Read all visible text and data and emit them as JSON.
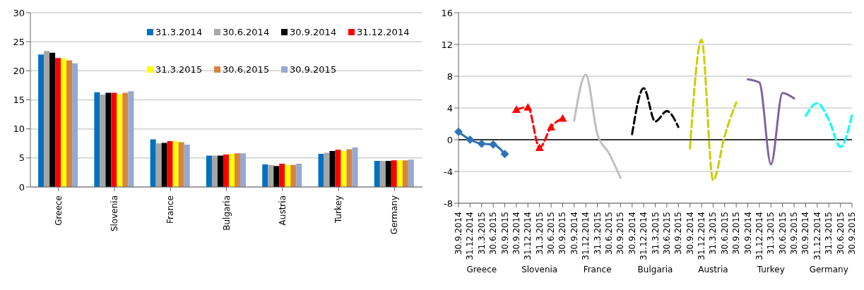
{
  "chart_data": [
    {
      "type": "bar",
      "categories": [
        "Greece",
        "Slovenia",
        "France",
        "Bulgaria",
        "Austria",
        "Turkey",
        "Germany"
      ],
      "series": [
        {
          "name": "31.3.2014",
          "color": "#0070c0",
          "values": [
            22.8,
            16.3,
            8.2,
            5.4,
            3.9,
            5.7,
            4.5
          ]
        },
        {
          "name": "30.6.2014",
          "color": "#a6a6a6",
          "values": [
            23.4,
            15.9,
            7.5,
            5.4,
            3.8,
            5.9,
            4.5
          ]
        },
        {
          "name": "30.9.2014",
          "color": "#000000",
          "values": [
            23.1,
            16.2,
            7.6,
            5.4,
            3.6,
            6.2,
            4.5
          ]
        },
        {
          "name": "31.12.2014",
          "color": "#ff0000",
          "values": [
            22.2,
            16.2,
            7.9,
            5.6,
            4.0,
            6.4,
            4.6
          ]
        },
        {
          "name": "31.3.2015",
          "color": "#ffff00",
          "values": [
            22.1,
            16.0,
            7.9,
            5.7,
            3.8,
            6.2,
            4.6
          ]
        },
        {
          "name": "30.6.2015",
          "color": "#d9843c",
          "values": [
            21.8,
            16.2,
            7.7,
            5.8,
            3.8,
            6.5,
            4.6
          ]
        },
        {
          "name": "30.9.2015",
          "color": "#95a9d1",
          "values": [
            21.3,
            16.5,
            7.3,
            5.8,
            4.0,
            6.8,
            4.7
          ]
        }
      ],
      "ylim": [
        0,
        30
      ],
      "yticks": [
        0,
        5,
        10,
        15,
        20,
        25,
        30
      ],
      "grid": "y",
      "legend": "top right"
    },
    {
      "type": "line",
      "categories": [
        "30.9.2014",
        "31.12.2014",
        "31.3.2015",
        "30.6.2015",
        "30.9.2015",
        "30.9.2014",
        "31.12.2014",
        "31.3.2015",
        "30.6.2015",
        "30.9.2015",
        "30.9.2014",
        "31.12.2014",
        "31.3.2015",
        "30.6.2015",
        "30.9.2015",
        "30.9.2014",
        "31.12.2014",
        "31.3.2015",
        "30.6.2015",
        "30.9.2015",
        "30.9.2014",
        "31.12.2014",
        "31.3.2015",
        "30.6.2015",
        "30.9.2015",
        "30.9.2014",
        "31.12.2014",
        "31.3.2015",
        "30.6.2015",
        "30.9.2015",
        "30.9.2014",
        "31.12.2014",
        "31.3.2015",
        "30.6.2015",
        "30.9.2015"
      ],
      "series": [
        {
          "color": "#2e75b6",
          "marker": "diamond",
          "line_style": "solid",
          "values": [
            1.0,
            0.0,
            -0.5,
            -0.6,
            -1.8,
            null,
            null,
            null,
            null,
            null,
            null,
            null,
            null,
            null,
            null,
            null,
            null,
            null,
            null,
            null,
            null,
            null,
            null,
            null,
            null,
            null,
            null,
            null,
            null,
            null,
            null,
            null,
            null,
            null,
            null
          ]
        },
        {
          "color": "#ff0000",
          "marker": "triangle",
          "line_style": "dashed",
          "values": [
            null,
            null,
            null,
            null,
            null,
            3.8,
            4.1,
            -1.0,
            1.6,
            2.7,
            null,
            null,
            null,
            null,
            null,
            null,
            null,
            null,
            null,
            null,
            null,
            null,
            null,
            null,
            null,
            null,
            null,
            null,
            null,
            null,
            null,
            null,
            null,
            null,
            null
          ]
        },
        {
          "color": "#bfbfbf",
          "marker": "none",
          "line_style": "solid",
          "values": [
            null,
            null,
            null,
            null,
            null,
            null,
            null,
            null,
            null,
            null,
            2.4,
            8.2,
            0.7,
            -1.7,
            -4.8,
            null,
            null,
            null,
            null,
            null,
            null,
            null,
            null,
            null,
            null,
            null,
            null,
            null,
            null,
            null,
            null,
            null,
            null,
            null,
            null
          ]
        },
        {
          "color": "#000000",
          "marker": "none",
          "line_style": "dashed",
          "values": [
            null,
            null,
            null,
            null,
            null,
            null,
            null,
            null,
            null,
            null,
            null,
            null,
            null,
            null,
            null,
            0.7,
            6.5,
            2.3,
            3.6,
            1.6,
            null,
            null,
            null,
            null,
            null,
            null,
            null,
            null,
            null,
            null,
            null,
            null,
            null,
            null,
            null
          ]
        },
        {
          "color": "#cccc00",
          "marker": "none",
          "line_style": "dashed",
          "values": [
            null,
            null,
            null,
            null,
            null,
            null,
            null,
            null,
            null,
            null,
            null,
            null,
            null,
            null,
            null,
            null,
            null,
            null,
            null,
            null,
            -1.1,
            12.6,
            -5.1,
            0.5,
            4.7,
            null,
            null,
            null,
            null,
            null,
            null,
            null,
            null,
            null,
            null
          ]
        },
        {
          "color": "#8064a2",
          "marker": "none",
          "line_style": "solid",
          "values": [
            null,
            null,
            null,
            null,
            null,
            null,
            null,
            null,
            null,
            null,
            null,
            null,
            null,
            null,
            null,
            null,
            null,
            null,
            null,
            null,
            null,
            null,
            null,
            null,
            null,
            7.6,
            7.2,
            -3.1,
            5.9,
            5.2,
            null,
            null,
            null,
            null,
            null
          ]
        },
        {
          "color": "#00ffff",
          "marker": "none",
          "line_style": "dashed",
          "values": [
            null,
            null,
            null,
            null,
            null,
            null,
            null,
            null,
            null,
            null,
            null,
            null,
            null,
            null,
            null,
            null,
            null,
            null,
            null,
            null,
            null,
            null,
            null,
            null,
            null,
            null,
            null,
            null,
            null,
            null,
            3.0,
            4.6,
            2.5,
            -0.9,
            3.1
          ]
        }
      ],
      "annotations": [
        "Greece",
        "Slovenia",
        "France",
        "Bulgaria",
        "Austria",
        "Turkey",
        "Germany"
      ],
      "ylim": [
        -8,
        16
      ],
      "yticks": [
        -8,
        -4,
        0,
        4,
        8,
        12,
        16
      ],
      "grid": "y"
    }
  ]
}
